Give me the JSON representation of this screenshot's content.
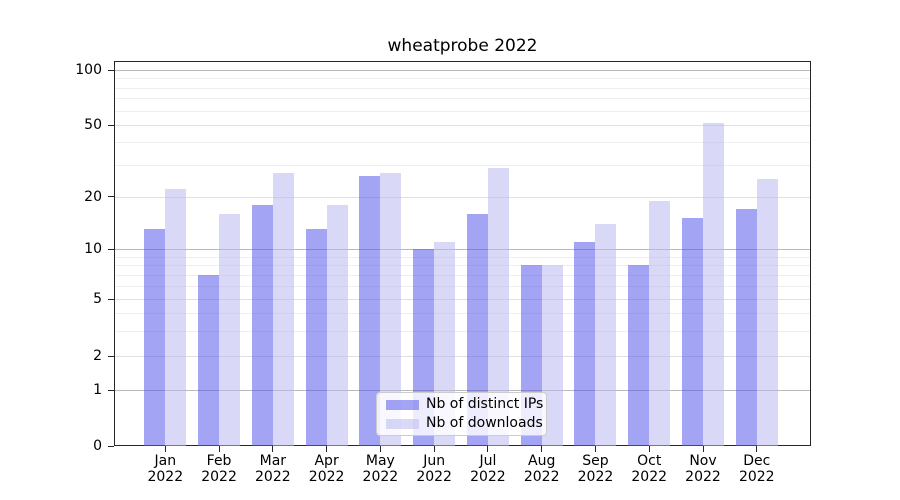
{
  "chart_data": {
    "type": "bar",
    "title": "wheatprobe 2022",
    "categories": [
      "Jan",
      "Feb",
      "Mar",
      "Apr",
      "May",
      "Jun",
      "Jul",
      "Aug",
      "Sep",
      "Oct",
      "Nov",
      "Dec"
    ],
    "year": "2022",
    "series": [
      {
        "name": "Nb of distinct IPs",
        "values": [
          13,
          7,
          18,
          13,
          26,
          10,
          16,
          8,
          11,
          8,
          15,
          17
        ],
        "color": "rgba(90,90,235,0.55)",
        "color_observed_hex": "#a6a6f7"
      },
      {
        "name": "Nb of downloads",
        "values": [
          22,
          16,
          27,
          18,
          27,
          11,
          29,
          8,
          14,
          19,
          51,
          25
        ],
        "color": "rgba(185,185,240,0.55)",
        "color_observed_hex": "#d8d8f6"
      }
    ],
    "yscale": "symlog",
    "ylim": [
      0,
      112
    ],
    "yticks": [
      100,
      50,
      20,
      10,
      5,
      2,
      1,
      0
    ],
    "grid": true,
    "legend_position": "lower center"
  }
}
